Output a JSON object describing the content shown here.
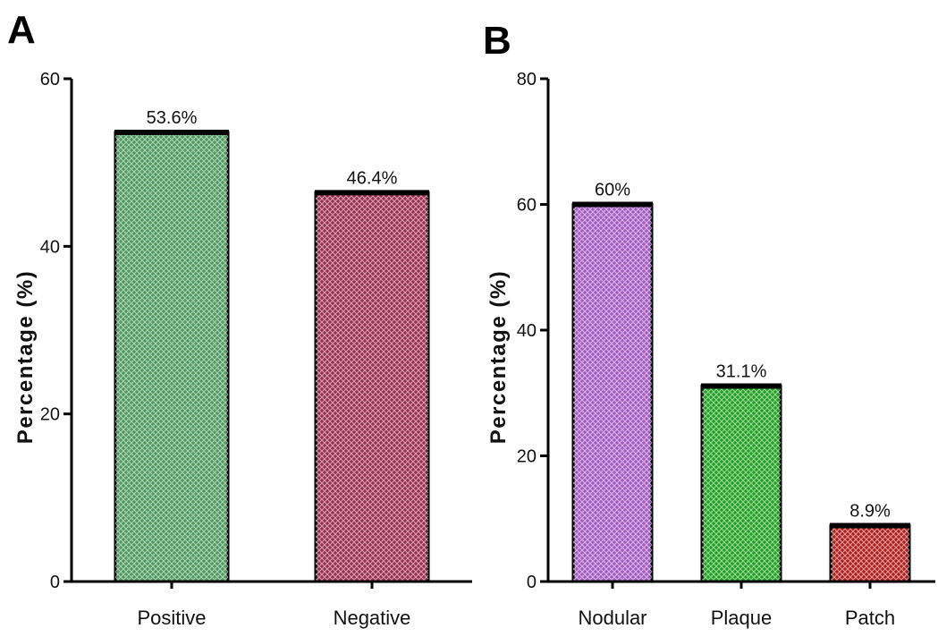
{
  "chart_data": [
    {
      "type": "bar",
      "panel_label": "A",
      "ylabel": "Percentage (%)",
      "xlabel": "",
      "ylim": [
        0,
        60
      ],
      "yticks": [
        0,
        20,
        40,
        60
      ],
      "categories": [
        "Positive",
        "Negative"
      ],
      "values": [
        53.6,
        46.4
      ],
      "data_labels": [
        "53.6%",
        "46.4%"
      ],
      "colors": [
        "#4c9a5e",
        "#9b2d4f"
      ],
      "grid": false
    },
    {
      "type": "bar",
      "panel_label": "B",
      "ylabel": "Percentage (%)",
      "xlabel": "",
      "ylim": [
        0,
        80
      ],
      "yticks": [
        0,
        20,
        40,
        60,
        80
      ],
      "categories": [
        "Nodular",
        "Plaque",
        "Patch"
      ],
      "values": [
        60,
        31.1,
        8.9
      ],
      "data_labels": [
        "60%",
        "31.1%",
        "8.9%"
      ],
      "colors": [
        "#a45ac4",
        "#1fa01f",
        "#b01e1e"
      ],
      "grid": false
    }
  ]
}
